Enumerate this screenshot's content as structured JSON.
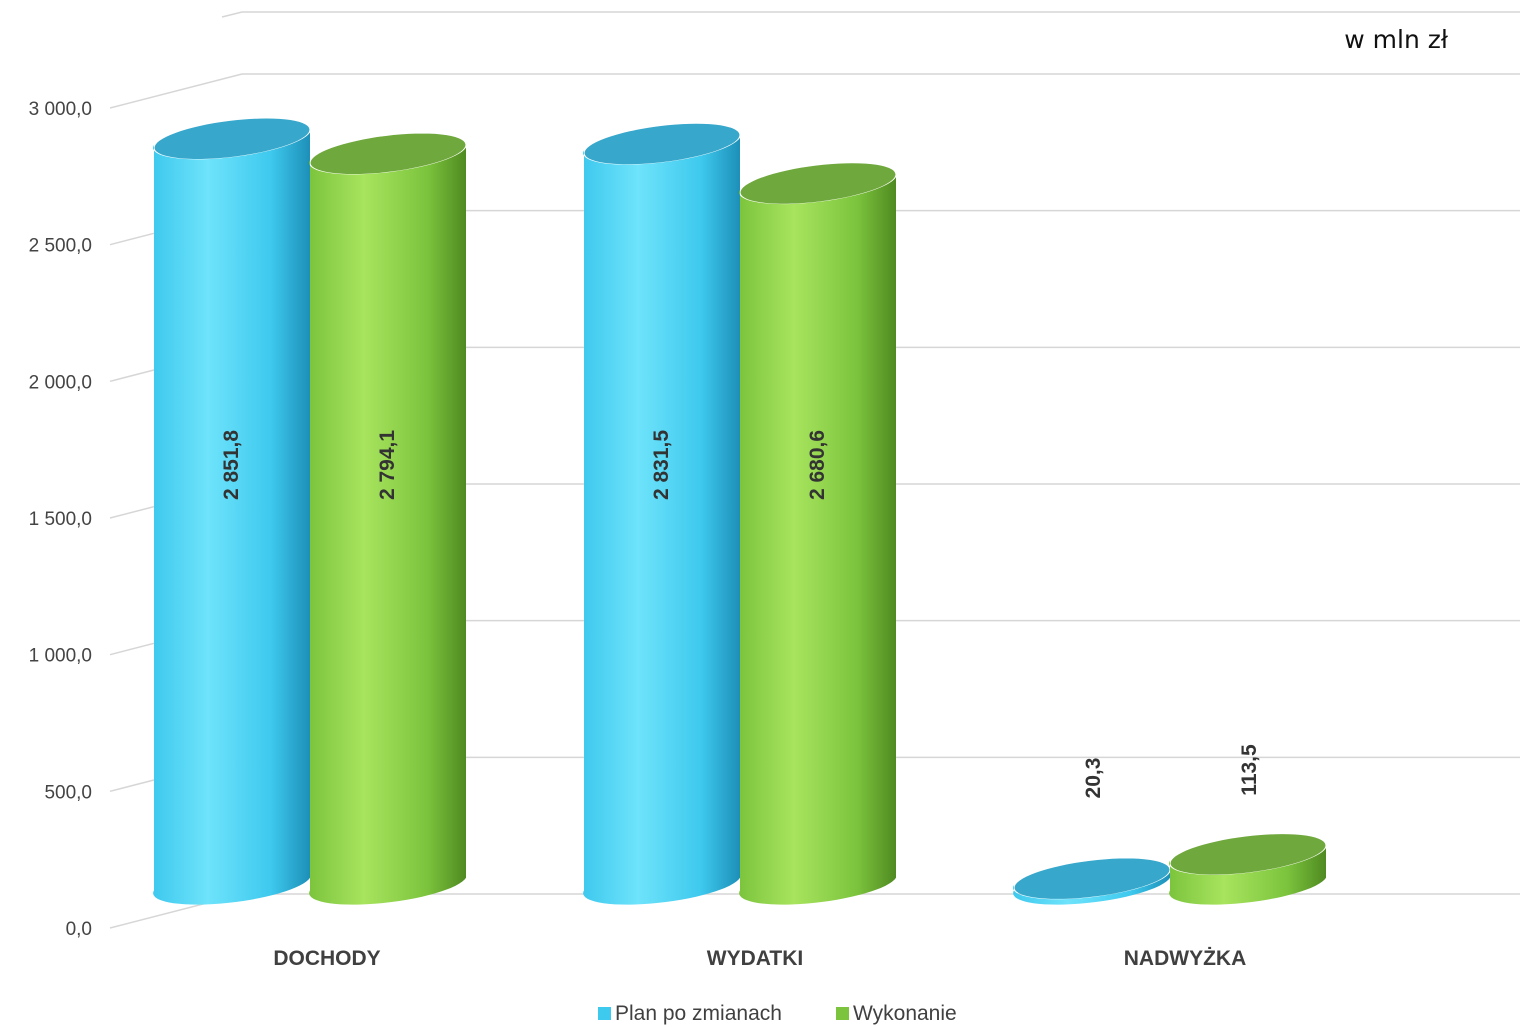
{
  "chart_data": {
    "type": "bar",
    "unit_label": "w mln zł",
    "categories": [
      "DOCHODY",
      "WYDATKI",
      "NADWYŻKA"
    ],
    "series": [
      {
        "name": "Plan po zmianach",
        "values": [
          2851.8,
          2831.5,
          20.3
        ],
        "labels": [
          "2 851,8",
          "2 831,5",
          "20,3"
        ]
      },
      {
        "name": "Wykonanie",
        "values": [
          2794.1,
          2680.6,
          113.5
        ],
        "labels": [
          "2 794,1",
          "2 680,6",
          "113,5"
        ]
      }
    ],
    "ylim": [
      0,
      3000
    ],
    "yticks": [
      0,
      500,
      1000,
      1500,
      2000,
      2500,
      3000
    ],
    "ytick_labels": [
      "0,0",
      "500,0",
      "1 000,0",
      "1 500,0",
      "2 000,0",
      "2 500,0",
      "3 000,0"
    ],
    "grid": true,
    "legend_position": "bottom",
    "colors": {
      "Plan po zmianach": {
        "light": "#6ee3fb",
        "mid": "#3ec9ee",
        "dark": "#1d8fb8",
        "top": "#37a7cc"
      },
      "Wykonanie": {
        "light": "#a8e45e",
        "mid": "#7cc43d",
        "dark": "#4f8a21",
        "top": "#6fa83c"
      }
    },
    "style": "3d-cylinder"
  }
}
